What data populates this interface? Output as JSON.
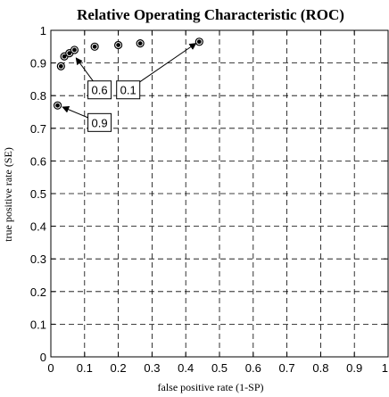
{
  "chart_data": {
    "type": "scatter",
    "title": "Relative Operating Characteristic  (ROC)",
    "xlabel": "false positive rate (1-SP)",
    "ylabel": "true positive rate (SE)",
    "xlim": [
      0,
      1
    ],
    "ylim": [
      0,
      1
    ],
    "xticks": [
      "0",
      "0.1",
      "0.2",
      "0.3",
      "0.4",
      "0.5",
      "0.6",
      "0.7",
      "0.8",
      "0.9",
      "1"
    ],
    "yticks": [
      "0",
      "0.1",
      "0.2",
      "0.3",
      "0.4",
      "0.5",
      "0.6",
      "0.7",
      "0.8",
      "0.9",
      "1"
    ],
    "grid": true,
    "points": [
      {
        "x": 0.02,
        "y": 0.77
      },
      {
        "x": 0.03,
        "y": 0.89
      },
      {
        "x": 0.04,
        "y": 0.92
      },
      {
        "x": 0.055,
        "y": 0.93
      },
      {
        "x": 0.07,
        "y": 0.94
      },
      {
        "x": 0.13,
        "y": 0.95
      },
      {
        "x": 0.2,
        "y": 0.955
      },
      {
        "x": 0.265,
        "y": 0.96
      },
      {
        "x": 0.44,
        "y": 0.965
      }
    ],
    "annotations": [
      {
        "text": "0.6",
        "box_at": {
          "x": 0.11,
          "y": 0.845
        },
        "arrow_to": {
          "x": 0.075,
          "y": 0.915
        }
      },
      {
        "text": "0.1",
        "box_at": {
          "x": 0.195,
          "y": 0.845
        },
        "arrow_to": {
          "x": 0.43,
          "y": 0.96
        }
      },
      {
        "text": "0.9",
        "box_at": {
          "x": 0.11,
          "y": 0.745
        },
        "arrow_to": {
          "x": 0.035,
          "y": 0.765
        }
      }
    ]
  }
}
